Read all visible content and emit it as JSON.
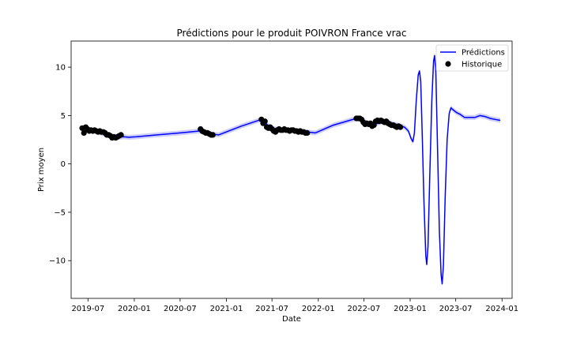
{
  "chart_data": {
    "type": "line",
    "title": "Prédictions pour le produit POIVRON France vrac",
    "xlabel": "Date",
    "ylabel": "Prix moyen",
    "xlim": [
      "2019-04-25",
      "2024-02-10"
    ],
    "ylim": [
      -13.9,
      12.7
    ],
    "xticks": [
      "2019-07",
      "2020-01",
      "2020-07",
      "2021-01",
      "2021-07",
      "2022-01",
      "2022-07",
      "2023-01",
      "2023-07",
      "2024-01"
    ],
    "yticks": [
      -10,
      -5,
      0,
      5,
      10
    ],
    "grid": false,
    "legend": {
      "position": "top-right",
      "entries": [
        "Prédictions",
        "Historique"
      ]
    },
    "colors": {
      "prediction": "#0000ff",
      "band": "#c8c8f8",
      "historique": "#000000"
    },
    "series": [
      {
        "name": "Prédictions",
        "style": "line",
        "band_halfwidth": 0.25,
        "points": [
          [
            "2019-06-10",
            3.7
          ],
          [
            "2019-06-25",
            3.5
          ],
          [
            "2019-07-10",
            3.4
          ],
          [
            "2019-08-01",
            3.4
          ],
          [
            "2019-08-20",
            3.2
          ],
          [
            "2019-09-10",
            3.0
          ],
          [
            "2019-10-05",
            2.8
          ],
          [
            "2019-11-01",
            2.75
          ],
          [
            "2019-11-20",
            2.8
          ],
          [
            "2019-12-10",
            2.75
          ],
          [
            "2020-01-10",
            2.8
          ],
          [
            "2020-04-01",
            3.0
          ],
          [
            "2020-07-01",
            3.2
          ],
          [
            "2020-09-15",
            3.4
          ],
          [
            "2020-10-15",
            3.2
          ],
          [
            "2020-11-15",
            3.05
          ],
          [
            "2020-12-01",
            3.0
          ],
          [
            "2021-03-01",
            3.9
          ],
          [
            "2021-05-20",
            4.6
          ],
          [
            "2021-06-05",
            4.2
          ],
          [
            "2021-06-25",
            3.8
          ],
          [
            "2021-07-15",
            3.6
          ],
          [
            "2021-08-10",
            3.5
          ],
          [
            "2021-09-10",
            3.5
          ],
          [
            "2021-10-15",
            3.4
          ],
          [
            "2021-11-20",
            3.3
          ],
          [
            "2021-12-20",
            3.2
          ],
          [
            "2022-03-01",
            4.0
          ],
          [
            "2022-06-01",
            4.7
          ],
          [
            "2022-06-25",
            4.6
          ],
          [
            "2022-07-15",
            4.2
          ],
          [
            "2022-08-10",
            4.0
          ],
          [
            "2022-09-01",
            4.3
          ],
          [
            "2022-09-25",
            4.4
          ],
          [
            "2022-10-20",
            4.2
          ],
          [
            "2022-11-15",
            4.0
          ],
          [
            "2022-12-10",
            3.8
          ],
          [
            "2022-12-25",
            3.4
          ],
          [
            "2023-01-05",
            2.6
          ],
          [
            "2023-01-12",
            2.3
          ],
          [
            "2023-01-18",
            3.2
          ],
          [
            "2023-01-25",
            6.5
          ],
          [
            "2023-02-02",
            9.2
          ],
          [
            "2023-02-07",
            9.6
          ],
          [
            "2023-02-12",
            8.5
          ],
          [
            "2023-02-18",
            3.0
          ],
          [
            "2023-02-25",
            -4.0
          ],
          [
            "2023-03-04",
            -9.5
          ],
          [
            "2023-03-08",
            -10.4
          ],
          [
            "2023-03-13",
            -8.5
          ],
          [
            "2023-03-20",
            -1.0
          ],
          [
            "2023-03-28",
            6.5
          ],
          [
            "2023-04-04",
            10.6
          ],
          [
            "2023-04-08",
            11.2
          ],
          [
            "2023-04-13",
            9.5
          ],
          [
            "2023-04-20",
            1.5
          ],
          [
            "2023-04-27",
            -7.0
          ],
          [
            "2023-05-04",
            -11.5
          ],
          [
            "2023-05-08",
            -12.4
          ],
          [
            "2023-05-13",
            -10.5
          ],
          [
            "2023-05-20",
            -3.5
          ],
          [
            "2023-05-28",
            2.5
          ],
          [
            "2023-06-05",
            5.2
          ],
          [
            "2023-06-12",
            5.8
          ],
          [
            "2023-06-20",
            5.6
          ],
          [
            "2023-07-05",
            5.3
          ],
          [
            "2023-07-20",
            5.1
          ],
          [
            "2023-08-05",
            4.8
          ],
          [
            "2023-08-25",
            4.8
          ],
          [
            "2023-09-15",
            4.8
          ],
          [
            "2023-10-05",
            5.0
          ],
          [
            "2023-10-25",
            4.9
          ],
          [
            "2023-11-15",
            4.7
          ],
          [
            "2023-12-05",
            4.6
          ],
          [
            "2023-12-25",
            4.5
          ]
        ]
      },
      {
        "name": "Historique",
        "style": "scatter",
        "points": [
          [
            "2019-06-08",
            3.7
          ],
          [
            "2019-06-15",
            3.2
          ],
          [
            "2019-06-22",
            3.8
          ],
          [
            "2019-06-29",
            3.6
          ],
          [
            "2019-07-06",
            3.4
          ],
          [
            "2019-07-13",
            3.5
          ],
          [
            "2019-07-20",
            3.4
          ],
          [
            "2019-07-27",
            3.5
          ],
          [
            "2019-08-03",
            3.4
          ],
          [
            "2019-08-10",
            3.3
          ],
          [
            "2019-08-17",
            3.4
          ],
          [
            "2019-08-24",
            3.3
          ],
          [
            "2019-08-31",
            3.3
          ],
          [
            "2019-09-07",
            3.2
          ],
          [
            "2019-09-14",
            3.0
          ],
          [
            "2019-09-21",
            3.0
          ],
          [
            "2019-09-28",
            2.9
          ],
          [
            "2019-10-05",
            2.7
          ],
          [
            "2019-10-12",
            2.8
          ],
          [
            "2019-10-19",
            2.7
          ],
          [
            "2019-10-26",
            2.8
          ],
          [
            "2019-11-02",
            2.9
          ],
          [
            "2019-11-09",
            3.0
          ],
          [
            "2020-09-20",
            3.6
          ],
          [
            "2020-09-27",
            3.4
          ],
          [
            "2020-10-04",
            3.3
          ],
          [
            "2020-10-11",
            3.2
          ],
          [
            "2020-10-18",
            3.2
          ],
          [
            "2020-10-25",
            3.1
          ],
          [
            "2020-11-01",
            3.0
          ],
          [
            "2020-11-08",
            3.0
          ],
          [
            "2021-05-20",
            4.6
          ],
          [
            "2021-05-27",
            4.2
          ],
          [
            "2021-06-03",
            4.4
          ],
          [
            "2021-06-10",
            3.8
          ],
          [
            "2021-06-17",
            3.7
          ],
          [
            "2021-06-24",
            3.8
          ],
          [
            "2021-07-01",
            3.6
          ],
          [
            "2021-07-08",
            3.4
          ],
          [
            "2021-07-15",
            3.3
          ],
          [
            "2021-07-22",
            3.5
          ],
          [
            "2021-07-29",
            3.6
          ],
          [
            "2021-08-05",
            3.5
          ],
          [
            "2021-08-12",
            3.5
          ],
          [
            "2021-08-19",
            3.6
          ],
          [
            "2021-08-26",
            3.5
          ],
          [
            "2021-09-02",
            3.5
          ],
          [
            "2021-09-09",
            3.4
          ],
          [
            "2021-09-16",
            3.5
          ],
          [
            "2021-09-23",
            3.5
          ],
          [
            "2021-09-30",
            3.4
          ],
          [
            "2021-10-07",
            3.4
          ],
          [
            "2021-10-14",
            3.3
          ],
          [
            "2021-10-21",
            3.4
          ],
          [
            "2021-10-28",
            3.3
          ],
          [
            "2021-11-04",
            3.3
          ],
          [
            "2021-11-11",
            3.2
          ],
          [
            "2021-11-18",
            3.2
          ],
          [
            "2022-06-01",
            4.7
          ],
          [
            "2022-06-08",
            4.7
          ],
          [
            "2022-06-15",
            4.7
          ],
          [
            "2022-06-22",
            4.6
          ],
          [
            "2022-06-29",
            4.3
          ],
          [
            "2022-07-06",
            4.1
          ],
          [
            "2022-07-13",
            4.2
          ],
          [
            "2022-07-20",
            4.1
          ],
          [
            "2022-07-27",
            4.2
          ],
          [
            "2022-08-03",
            3.9
          ],
          [
            "2022-08-10",
            4.0
          ],
          [
            "2022-08-17",
            4.4
          ],
          [
            "2022-08-24",
            4.5
          ],
          [
            "2022-08-31",
            4.4
          ],
          [
            "2022-09-07",
            4.5
          ],
          [
            "2022-09-14",
            4.4
          ],
          [
            "2022-09-21",
            4.3
          ],
          [
            "2022-09-28",
            4.4
          ],
          [
            "2022-10-05",
            4.2
          ],
          [
            "2022-10-12",
            4.1
          ],
          [
            "2022-10-19",
            4.0
          ],
          [
            "2022-10-26",
            4.0
          ],
          [
            "2022-11-02",
            3.9
          ],
          [
            "2022-11-09",
            3.8
          ],
          [
            "2022-11-16",
            3.9
          ],
          [
            "2022-11-23",
            3.8
          ]
        ]
      }
    ]
  }
}
